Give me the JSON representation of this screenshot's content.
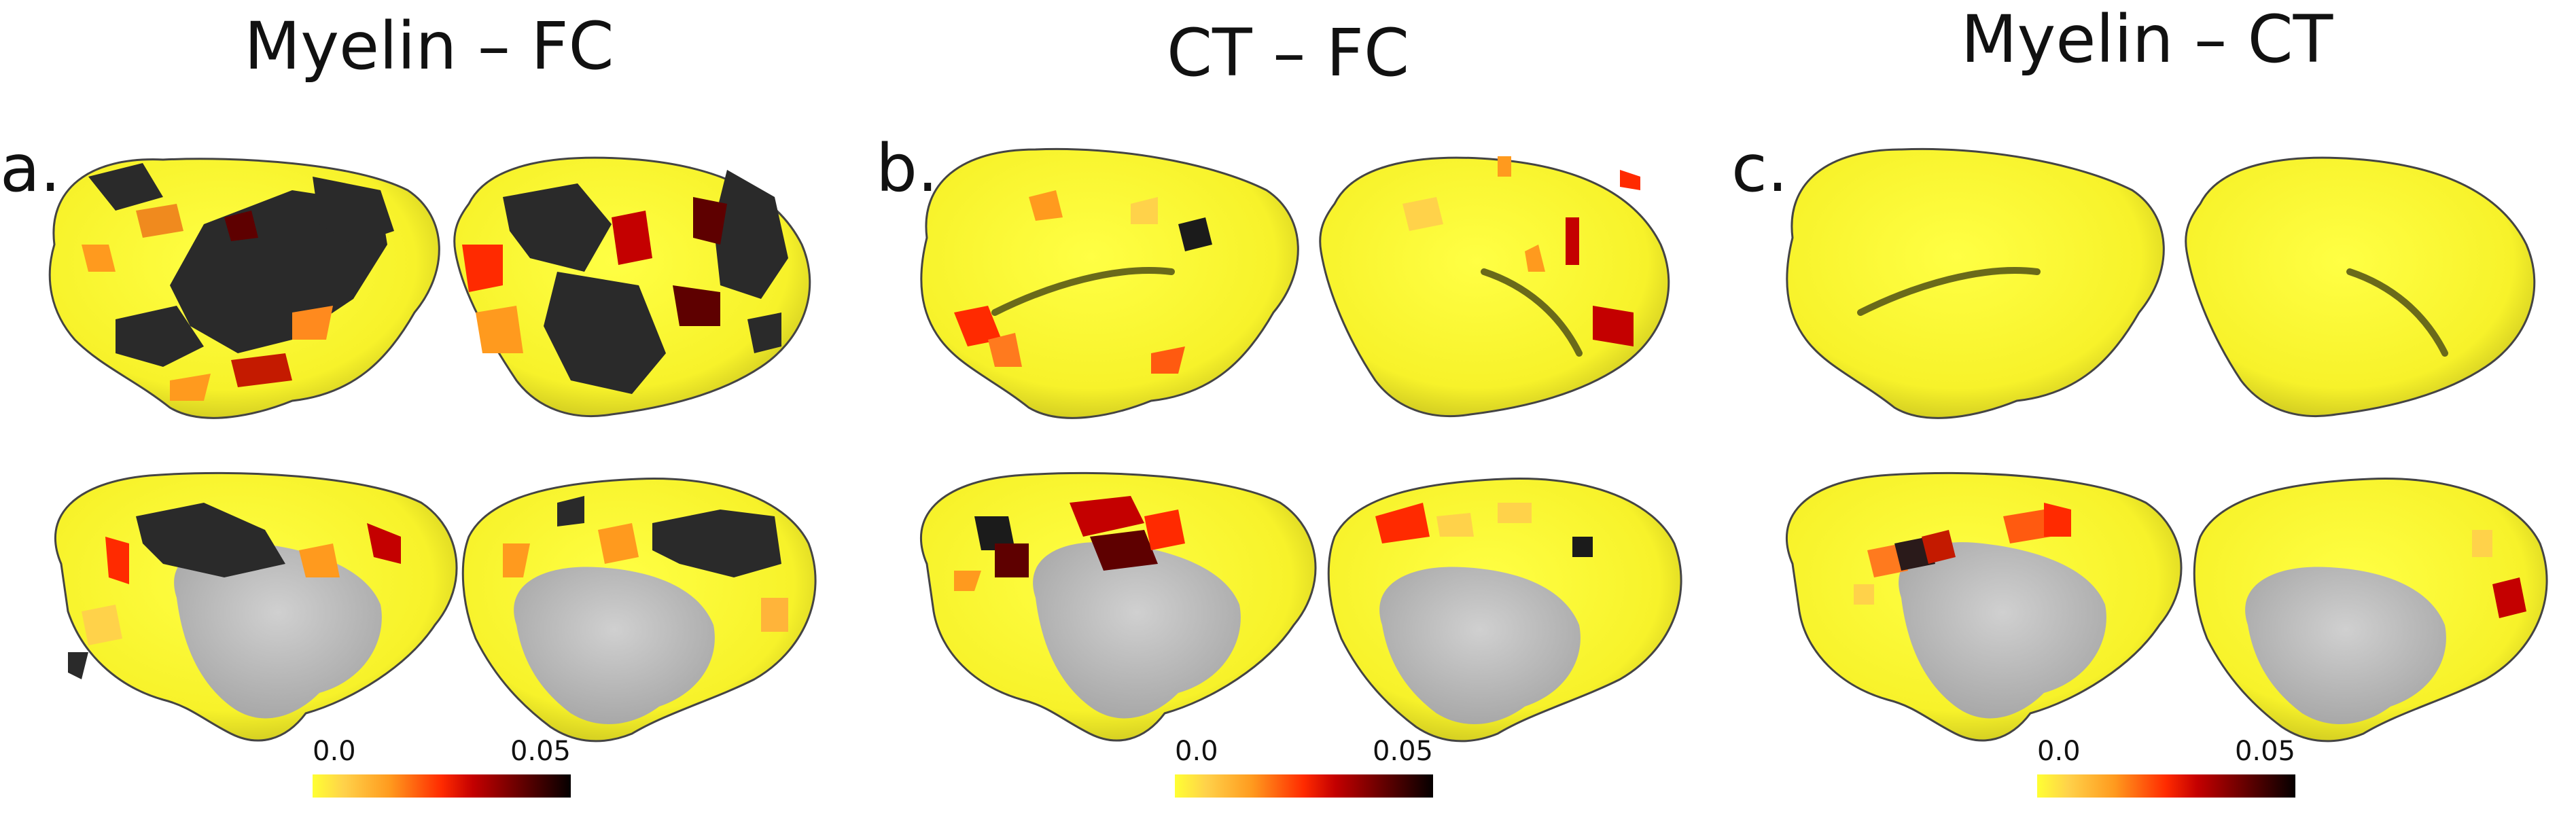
{
  "panels": [
    {
      "title": "Myelin – FC",
      "label": "a.",
      "colorbar": {
        "min": "0.0",
        "max": "0.05"
      }
    },
    {
      "title": "CT – FC",
      "label": "b.",
      "colorbar": {
        "min": "0.0",
        "max": "0.05"
      }
    },
    {
      "title": "Myelin – CT",
      "label": "c.",
      "colorbar": {
        "min": "0.0",
        "max": "0.05"
      }
    }
  ],
  "colors": {
    "surface": "#ffff33",
    "medial_wall": "#bfbfbf",
    "colormap": [
      "#ffff33",
      "#ff9a1e",
      "#ff2a00",
      "#c40000",
      "#5e0000",
      "#050000"
    ]
  }
}
